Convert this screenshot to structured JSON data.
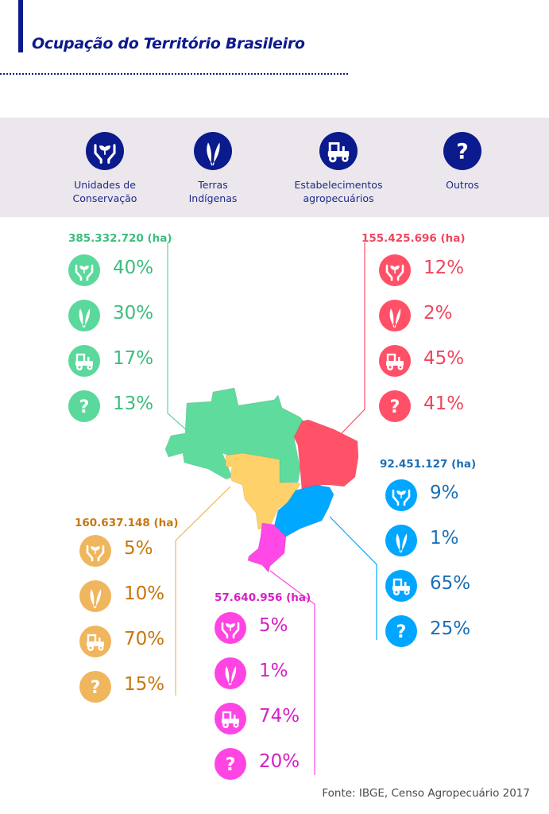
{
  "title": "Ocupação do Território Brasileiro",
  "legend": [
    {
      "icon": "hands-sprout-icon",
      "label_line1": "Unidades de",
      "label_line2": "Conservação"
    },
    {
      "icon": "feather-icon",
      "label_line1": "Terras",
      "label_line2": "Indígenas"
    },
    {
      "icon": "tractor-icon",
      "label_line1": "Estabelecimentos",
      "label_line2": "agropecuários"
    },
    {
      "icon": "question-icon",
      "label_line1": "Outros",
      "label_line2": ""
    }
  ],
  "regions": [
    {
      "key": "norte",
      "total": "385.332.720 (ha)",
      "color": "#5bd89c",
      "text_color": "#3dbd7d",
      "values": [
        "40%",
        "30%",
        "17%",
        "13%"
      ]
    },
    {
      "key": "nordeste",
      "total": "155.425.696 (ha)",
      "color": "#ff5068",
      "text_color": "#f0455e",
      "values": [
        "12%",
        "2%",
        "45%",
        "41%"
      ]
    },
    {
      "key": "sudeste",
      "total": "92.451.127 (ha)",
      "color": "#00a6ff",
      "text_color": "#1b6fb5",
      "values": [
        "9%",
        "1%",
        "65%",
        "25%"
      ]
    },
    {
      "key": "centro-oeste",
      "total": "160.637.148 (ha)",
      "color": "#efb65e",
      "text_color": "#c8760e",
      "values": [
        "5%",
        "10%",
        "70%",
        "15%"
      ]
    },
    {
      "key": "sul",
      "total": "57.640.956 (ha)",
      "color": "#ff44e4",
      "text_color": "#d61fc4",
      "values": [
        "5%",
        "1%",
        "74%",
        "20%"
      ]
    }
  ],
  "map_colors": {
    "norte": "#5fdb9d",
    "nordeste": "#ff5269",
    "sudeste": "#00a8ff",
    "centro-oeste": "#ffd16b",
    "sul": "#ff48e6"
  },
  "source": "Fonte: IBGE, Censo Agropecuário 2017"
}
